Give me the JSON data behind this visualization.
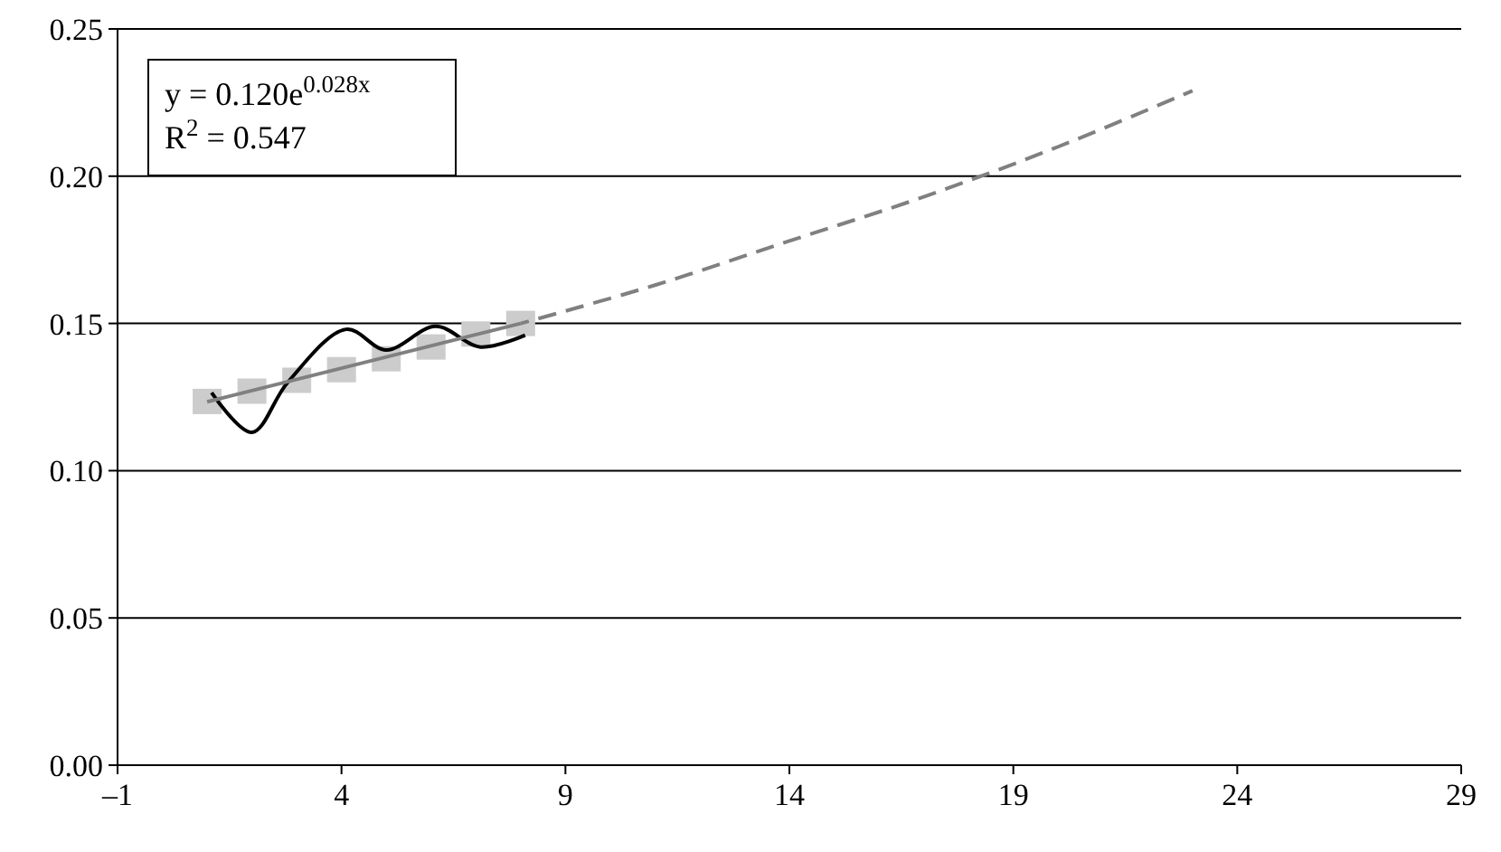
{
  "chart_data": {
    "type": "line",
    "xlim": [
      -1,
      29
    ],
    "xticks": [
      {
        "value": -1,
        "label": "–1"
      },
      4,
      9,
      14,
      19,
      24,
      29
    ],
    "ylim": [
      0,
      0.25
    ],
    "yticks": [
      {
        "value": 0,
        "label": "0.00"
      },
      {
        "value": 0.05,
        "label": "0.05"
      },
      {
        "value": 0.1,
        "label": "0.10"
      },
      {
        "value": 0.15,
        "label": "0.15"
      },
      {
        "value": 0.2,
        "label": "0.20"
      },
      {
        "value": 0.25,
        "label": "0.25"
      }
    ],
    "grid": "y",
    "series": [
      {
        "type": "scatter",
        "marker": "square",
        "color": "#cccccc",
        "x": [
          1,
          2,
          3,
          4,
          5,
          6,
          7,
          8
        ],
        "values": [
          0.1235,
          0.127,
          0.1307,
          0.1343,
          0.138,
          0.142,
          0.1464,
          0.15
        ]
      },
      {
        "marker": "none",
        "line_style": "solid",
        "color": "#000000",
        "x": [
          1.1,
          2,
          2.8,
          4.1,
          5,
          6.1,
          7.1,
          8.1
        ],
        "values": [
          0.1265,
          0.113,
          0.13,
          0.148,
          0.141,
          0.149,
          0.142,
          0.146
        ]
      },
      {
        "marker": "none",
        "line_style": "solid",
        "color": "#808080",
        "x": [
          1,
          8
        ],
        "values": [
          0.1234,
          0.15
        ]
      },
      {
        "marker": "none",
        "line_style": "dashed",
        "color": "#808080",
        "x": [
          8,
          11,
          14,
          17,
          20,
          23
        ],
        "values": [
          0.15,
          0.163,
          0.178,
          0.193,
          0.21,
          0.229
        ]
      }
    ],
    "annotations": [
      "y = 0.120e$^{0.028x}$",
      "R$^{2}$ = 0.547"
    ]
  }
}
